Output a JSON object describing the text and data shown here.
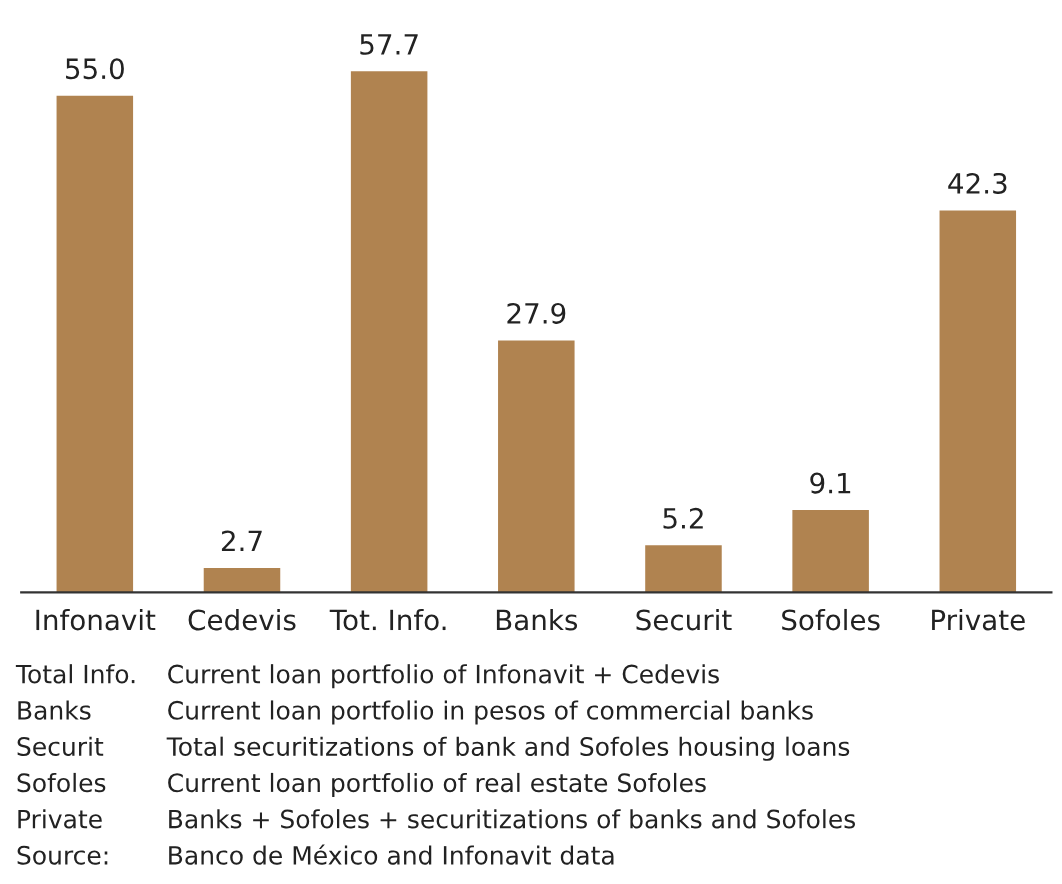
{
  "chart_data": {
    "type": "bar",
    "categories": [
      "Infonavit",
      "Cedevis",
      "Tot. Info.",
      "Banks",
      "Securit",
      "Sofoles",
      "Private"
    ],
    "values": [
      55.0,
      2.7,
      57.7,
      27.9,
      5.2,
      9.1,
      42.3
    ],
    "value_labels": [
      "55.0",
      "2.7",
      "57.7",
      "27.9",
      "5.2",
      "9.1",
      "42.3"
    ],
    "color": "#b08350",
    "grid": false,
    "legend": false,
    "annotations": [
      "Total Info.\tCurrent loan portfolio of Infonavit + Cedevis",
      "Banks\tCurrent loan portfolio in pesos of commercial banks",
      "Securit\tTotal securitizations of bank and Sofoles housing loans",
      "Sofoles\tCurrent loan portfolio of real estate Sofoles",
      "Private\tBanks + Sofoles + securitizations of banks and Sofoles",
      "Source:\tBanco de México and Infonavit data"
    ]
  }
}
